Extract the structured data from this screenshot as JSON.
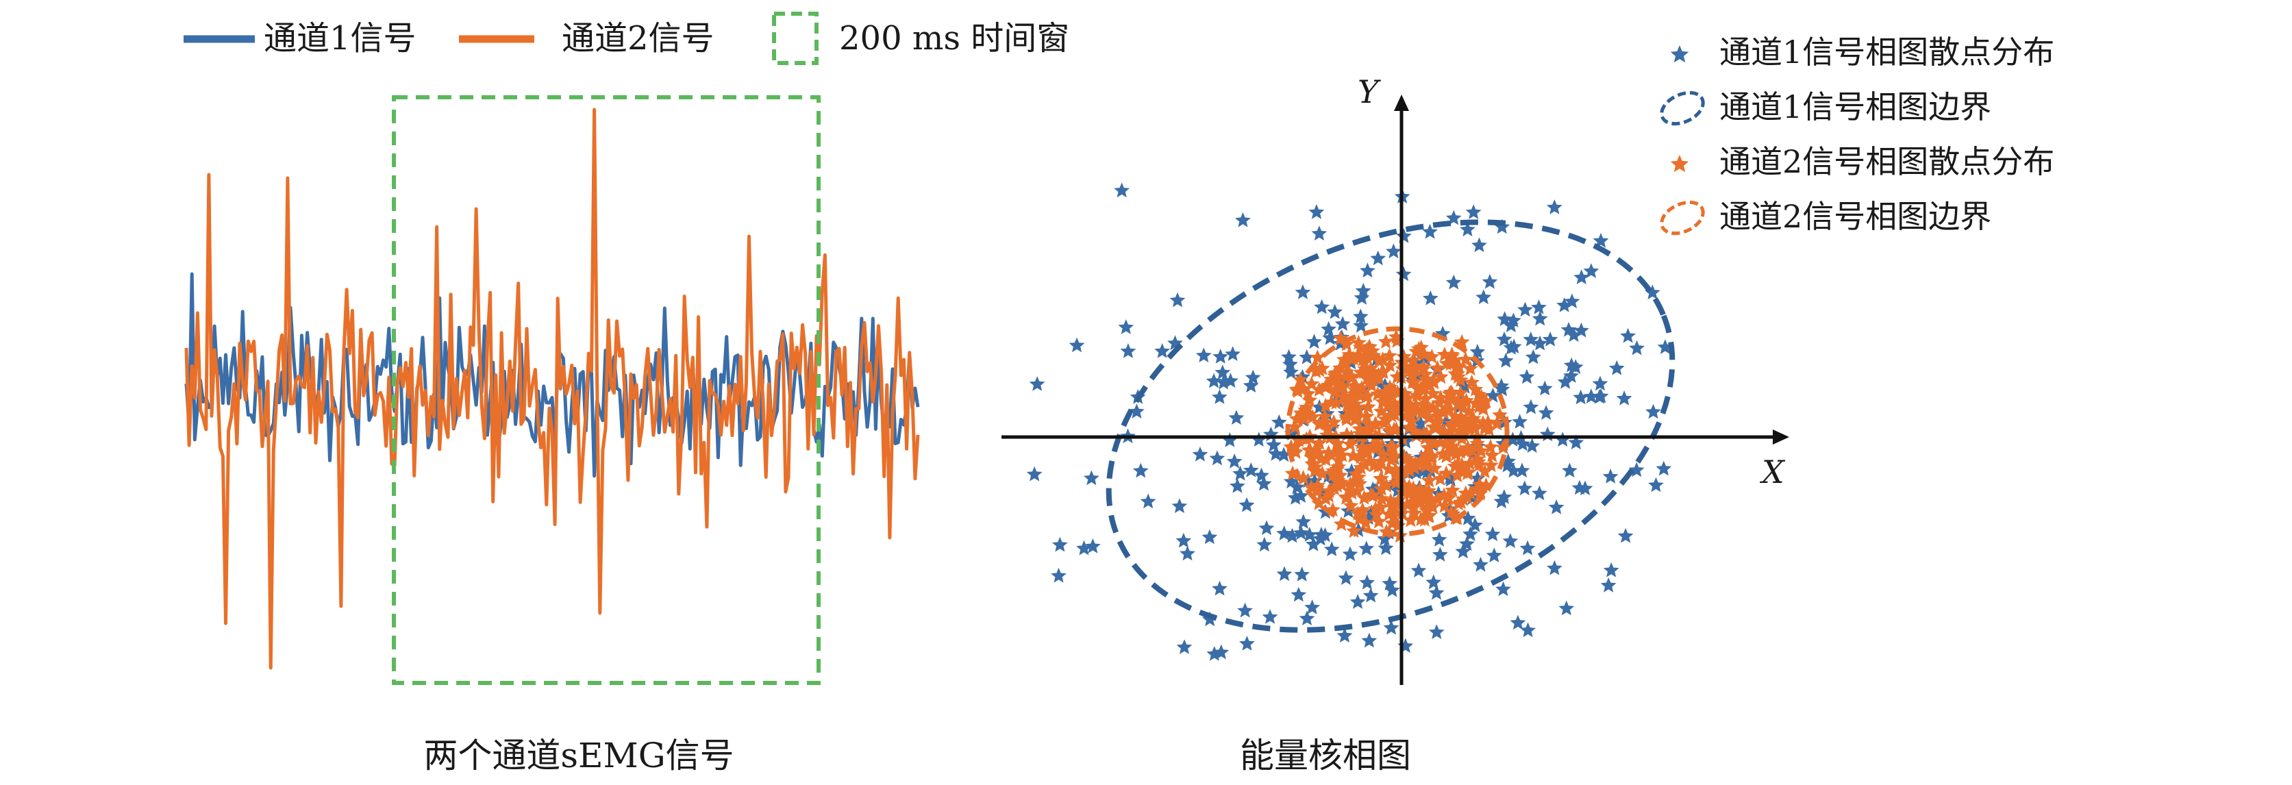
{
  "left_panel": {
    "legend": {
      "channel1_label": "通道1信号",
      "channel2_label": "通道2信号",
      "window_label": "200 ms 时间窗"
    },
    "caption": "两个通道sEMG信号"
  },
  "right_panel": {
    "axis_y_label": "Y",
    "axis_x_label": "X",
    "legend": {
      "ch1_scatter": "通道1信号相图散点分布",
      "ch1_boundary": "通道1信号相图边界",
      "ch2_scatter": "通道2信号相图散点分布",
      "ch2_boundary": "通道2信号相图边界"
    },
    "caption": "能量核相图"
  },
  "colors": {
    "channel1": "#3b6ea8",
    "channel2": "#e8702a",
    "window": "#5cb85c",
    "axis": "#111111"
  },
  "icons": [
    "star-marker-icon",
    "dashed-ellipse-icon",
    "dashed-square-icon"
  ]
}
